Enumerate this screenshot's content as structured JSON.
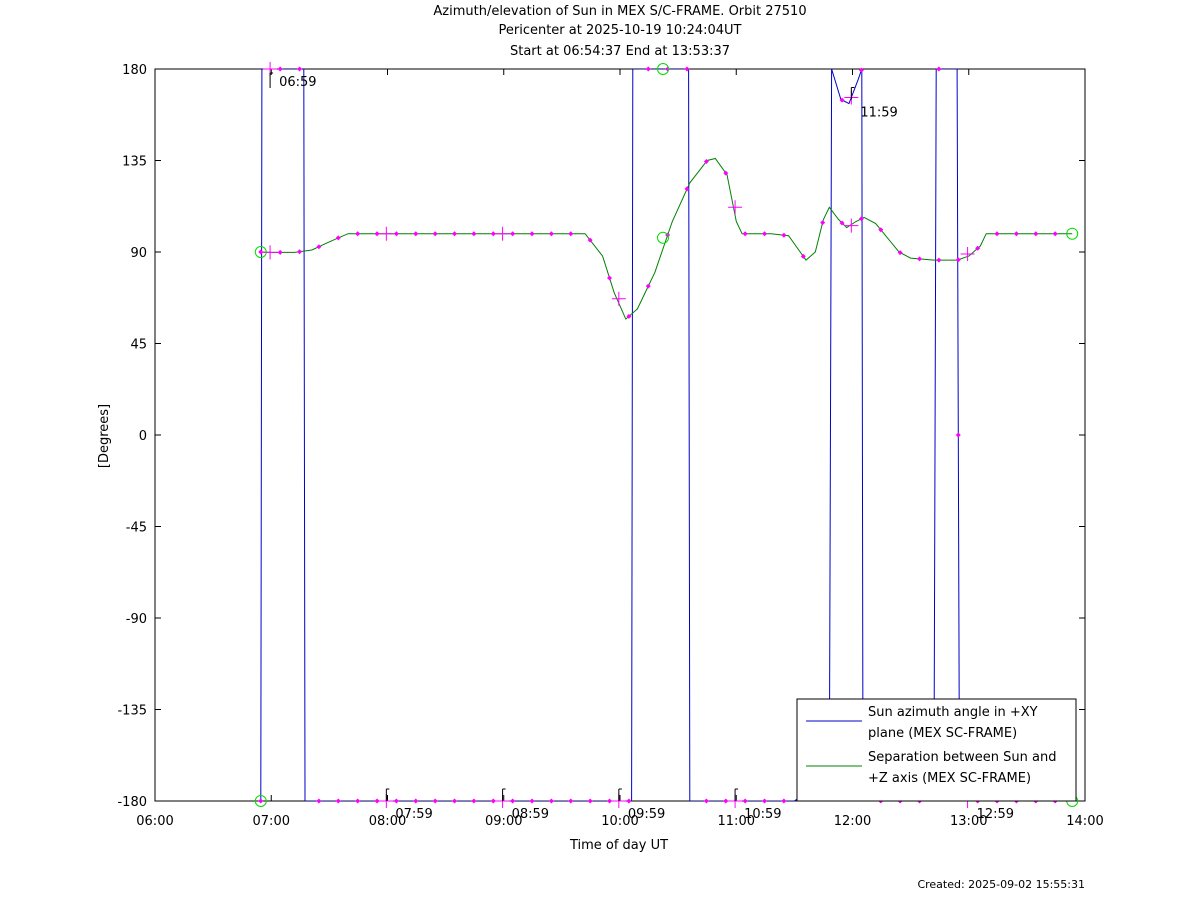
{
  "title_lines": [
    "Azimuth/elevation of Sun in MEX S/C-FRAME.  Orbit 27510",
    "Pericenter at 2025-10-19 10:24:04UT",
    "Start at 06:54:37 End at 13:53:37"
  ],
  "created": "Created: 2025-09-02 15:55:31",
  "colors": {
    "azimuth": "#0000cc",
    "separation": "#008000",
    "marker": "#ff00ff",
    "circle": "#00dd00",
    "axes": "#000000"
  },
  "chart_data": {
    "type": "line",
    "xlabel": "Time of day UT",
    "ylabel": "[Degrees]",
    "xlim": [
      6.0,
      14.0
    ],
    "ylim": [
      -180,
      180
    ],
    "x_ticks": [
      6,
      7,
      8,
      9,
      10,
      11,
      12,
      13,
      14
    ],
    "x_tick_labels": [
      "06:00",
      "07:00",
      "08:00",
      "09:00",
      "10:00",
      "11:00",
      "12:00",
      "13:00",
      "14:00"
    ],
    "y_ticks": [
      180,
      135,
      90,
      45,
      0,
      -45,
      -90,
      -135,
      -180
    ],
    "y_tick_labels": [
      "180",
      "135",
      "90",
      "45",
      "0",
      "-45",
      "-90",
      "-135",
      "-180"
    ],
    "legend_position": "bottom-right",
    "series": [
      {
        "name": "Sun azimuth angle in +XY plane (MEX SC-FRAME)",
        "legend_lines": [
          "Sun azimuth angle in +XY",
          "plane (MEX SC-FRAME)"
        ],
        "points": [
          [
            6.91,
            -180
          ],
          [
            6.92,
            180
          ],
          [
            7.28,
            180
          ],
          [
            7.29,
            -180
          ],
          [
            9.1,
            -180
          ],
          [
            10.1,
            -180
          ],
          [
            10.11,
            180
          ],
          [
            10.59,
            180
          ],
          [
            10.6,
            -180
          ],
          [
            11.5,
            -180
          ],
          [
            11.55,
            -178
          ],
          [
            11.8,
            -176
          ],
          [
            11.82,
            180
          ],
          [
            11.9,
            165
          ],
          [
            11.97,
            163
          ],
          [
            12.05,
            175
          ],
          [
            12.08,
            180
          ],
          [
            12.09,
            -180
          ],
          [
            12.7,
            -180
          ],
          [
            12.72,
            180
          ],
          [
            12.9,
            180
          ],
          [
            12.92,
            -180
          ],
          [
            13.9,
            -180
          ]
        ]
      },
      {
        "name": "Separation between Sun and +Z axis (MEX SC-FRAME)",
        "legend_lines": [
          "Separation between Sun and",
          "+Z axis (MEX SC-FRAME)"
        ],
        "points": [
          [
            6.91,
            90
          ],
          [
            7.0,
            89.8
          ],
          [
            7.2,
            89.8
          ],
          [
            7.35,
            91
          ],
          [
            7.5,
            95
          ],
          [
            7.66,
            99
          ],
          [
            8.0,
            99
          ],
          [
            9.0,
            99
          ],
          [
            9.7,
            99
          ],
          [
            9.85,
            88
          ],
          [
            9.95,
            70
          ],
          [
            10.05,
            57
          ],
          [
            10.15,
            62
          ],
          [
            10.3,
            80
          ],
          [
            10.45,
            105
          ],
          [
            10.6,
            124
          ],
          [
            10.75,
            135
          ],
          [
            10.82,
            136
          ],
          [
            10.92,
            128
          ],
          [
            11.0,
            105
          ],
          [
            11.05,
            99
          ],
          [
            11.3,
            99
          ],
          [
            11.45,
            98
          ],
          [
            11.55,
            90
          ],
          [
            11.6,
            86
          ],
          [
            11.68,
            90
          ],
          [
            11.75,
            106
          ],
          [
            11.8,
            112
          ],
          [
            11.88,
            106
          ],
          [
            11.95,
            102
          ],
          [
            12.03,
            105
          ],
          [
            12.1,
            107
          ],
          [
            12.2,
            104
          ],
          [
            12.3,
            97
          ],
          [
            12.4,
            90
          ],
          [
            12.5,
            87
          ],
          [
            12.7,
            86
          ],
          [
            12.9,
            86
          ],
          [
            13.0,
            88
          ],
          [
            13.1,
            93
          ],
          [
            13.15,
            99
          ],
          [
            13.89,
            99
          ]
        ]
      }
    ],
    "time_labels": [
      {
        "x": 6.99,
        "y": 180,
        "text": "06:59"
      },
      {
        "x": 7.99,
        "y": -180,
        "text": "07:59"
      },
      {
        "x": 8.99,
        "y": -180,
        "text": "08:59"
      },
      {
        "x": 9.99,
        "y": -180,
        "text": "09:59"
      },
      {
        "x": 10.99,
        "y": -180,
        "text": "10:59"
      },
      {
        "x": 11.99,
        "y": 165,
        "text": "11:59"
      },
      {
        "x": 12.99,
        "y": -180,
        "text": "12:59"
      }
    ],
    "hour_crosses": [
      [
        6.99,
        180
      ],
      [
        6.99,
        89.8
      ],
      [
        7.99,
        -180
      ],
      [
        7.99,
        99
      ],
      [
        8.99,
        -180
      ],
      [
        8.99,
        99
      ],
      [
        9.99,
        -180
      ],
      [
        9.99,
        67
      ],
      [
        10.99,
        -180
      ],
      [
        10.99,
        112
      ],
      [
        11.99,
        166
      ],
      [
        11.99,
        103
      ],
      [
        12.99,
        -180
      ],
      [
        12.99,
        89
      ]
    ],
    "circles": [
      [
        6.91,
        90
      ],
      [
        6.91,
        -180
      ],
      [
        10.37,
        180
      ],
      [
        10.37,
        97
      ],
      [
        13.89,
        99
      ],
      [
        13.89,
        -180
      ]
    ]
  }
}
